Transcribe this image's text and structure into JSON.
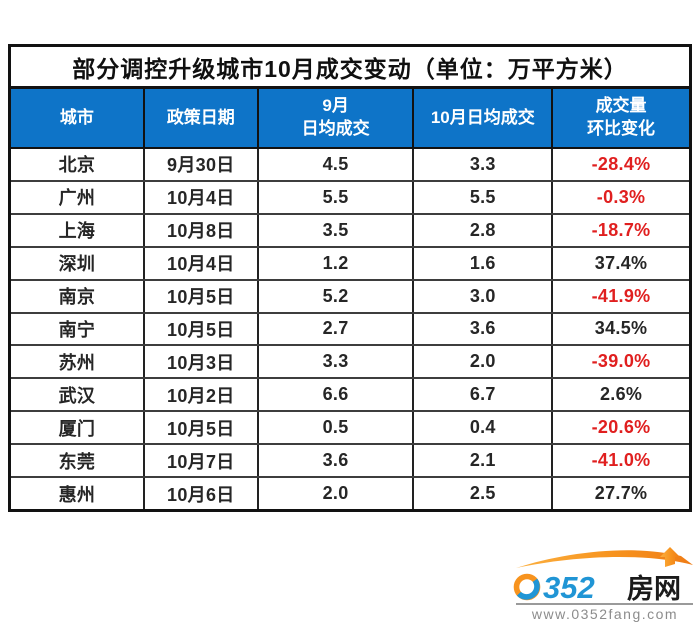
{
  "chart_data": {
    "type": "table",
    "title": "部分调控升级城市10月成交变动（单位：万平方米）",
    "columns": [
      "城市",
      "政策日期",
      "9月日均成交",
      "10月日均成交",
      "成交量环比变化"
    ],
    "rows": [
      [
        "北京",
        "9月30日",
        "4.5",
        "3.3",
        "-28.4%"
      ],
      [
        "广州",
        "10月4日",
        "5.5",
        "5.5",
        "-0.3%"
      ],
      [
        "上海",
        "10月8日",
        "3.5",
        "2.8",
        "-18.7%"
      ],
      [
        "深圳",
        "10月4日",
        "1.2",
        "1.6",
        "37.4%"
      ],
      [
        "南京",
        "10月5日",
        "5.2",
        "3.0",
        "-41.9%"
      ],
      [
        "南宁",
        "10月5日",
        "2.7",
        "3.6",
        "34.5%"
      ],
      [
        "苏州",
        "10月3日",
        "3.3",
        "2.0",
        "-39.0%"
      ],
      [
        "武汉",
        "10月2日",
        "6.6",
        "6.7",
        "2.6%"
      ],
      [
        "厦门",
        "10月5日",
        "0.5",
        "0.4",
        "-20.6%"
      ],
      [
        "东莞",
        "10月7日",
        "3.6",
        "2.1",
        "-41.0%"
      ],
      [
        "惠州",
        "10月6日",
        "2.0",
        "2.5",
        "27.7%"
      ]
    ]
  },
  "table": {
    "header_lines": [
      "城市",
      "政策日期",
      "9月\n日均成交",
      "10月日均成交",
      "成交量\n环比变化"
    ],
    "header_bg": "#0e74c8",
    "negative_color": "#e01f1f",
    "text_color": "#262626"
  },
  "logo": {
    "brand": "0352房网",
    "digit_zero": "0",
    "digits_rest": "352",
    "brand_cjk": "房网",
    "url": "www.0352fang.com",
    "blue": "#2095d5",
    "orange": "#f7931e",
    "url_color": "#8c8c8c"
  }
}
